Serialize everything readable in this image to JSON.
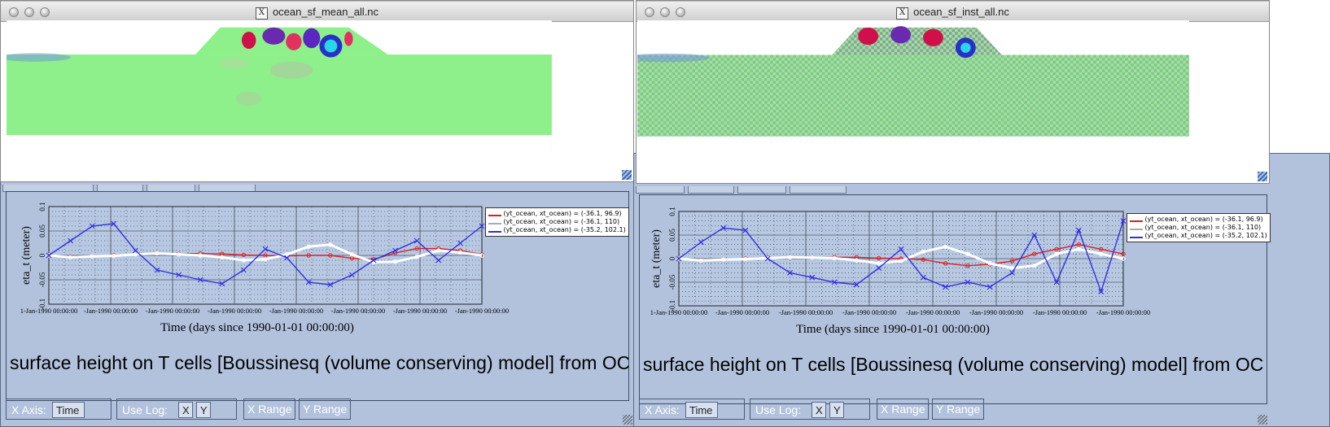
{
  "left_image_window": {
    "title": "ocean_sf_mean_all.nc"
  },
  "right_image_window": {
    "title": "ocean_sf_inst_all.nc"
  },
  "colors": {
    "panel_bg": "#b2c2dd",
    "plot_bg": "#b7c8e3",
    "red": "#d92020",
    "white": "#ffffff",
    "blue": "#3030e0"
  },
  "plots": [
    {
      "long_title": "surface height on T cells [Boussinesq (volume conserving) model] from OC",
      "legend": [
        "(yt_ocean, xt_ocean) = (-36.1, 96.9)",
        "(yt_ocean, xt_ocean) = (-36.1, 110)",
        "(yt_ocean, xt_ocean) = (-35.2, 102.1)"
      ],
      "xaxis_label": "X Axis:",
      "xaxis_value": "Time",
      "uselog_label": "Use Log:",
      "uselog_x": "X",
      "uselog_y": "Y",
      "xrange_label": "X Range",
      "yrange_label": "Y Range"
    },
    {
      "long_title": "surface height on T cells [Boussinesq (volume conserving) model] from OC",
      "legend": [
        "(yt_ocean, xt_ocean) = (-36.1, 96.9)",
        "(yt_ocean, xt_ocean) = (-36.1, 110)",
        "(yt_ocean, xt_ocean) = (-35.2, 102.1)"
      ],
      "xaxis_label": "X Axis:",
      "xaxis_value": "Time",
      "uselog_label": "Use Log:",
      "uselog_x": "X",
      "uselog_y": "Y",
      "xrange_label": "X Range",
      "yrange_label": "Y Range"
    }
  ],
  "chart_data": [
    {
      "type": "line",
      "xlabel": "Time (days since 1990-01-01 00:00:00)",
      "ylabel": "eta_t (meter)",
      "ylim": [
        -0.1,
        0.1
      ],
      "yticks": [
        "-0.1",
        "-0.05",
        "0",
        "0.05",
        "0.1"
      ],
      "xticks": [
        "1-Jan-1990 00:00:00",
        "-Jan-1990 00:00:00",
        "-Jan-1990 00:00:00",
        "-Jan-1990 00:00:00",
        "-Jan-1990 00:00:00",
        "-Jan-1990 00:00:00",
        "-Jan-1990 00:00:00",
        "-Jan-1990 00:00:00"
      ],
      "grid": true,
      "legend_position": "top-right",
      "x": [
        0,
        0.05,
        0.1,
        0.15,
        0.2,
        0.25,
        0.3,
        0.35,
        0.4,
        0.45,
        0.5,
        0.55,
        0.6,
        0.65,
        0.7,
        0.75,
        0.8,
        0.85,
        0.9,
        0.95,
        1
      ],
      "series": [
        {
          "name": "(yt_ocean, xt_ocean) = (-36.1, 96.9)",
          "color": "#d92020",
          "values": [
            0,
            -0.003,
            -0.002,
            0,
            0.002,
            0.003,
            0.003,
            0.004,
            0.003,
            0.001,
            0,
            -0.001,
            0,
            0,
            -0.006,
            -0.008,
            0.005,
            0.014,
            0.014,
            0.01,
            0.002
          ]
        },
        {
          "name": "(yt_ocean, xt_ocean) = (-36.1, 110)",
          "color": "#ffffff",
          "values": [
            0,
            -0.004,
            -0.002,
            -0.001,
            0.002,
            0.004,
            0.002,
            0,
            -0.004,
            -0.01,
            -0.008,
            0.002,
            0.018,
            0.022,
            0.002,
            -0.014,
            -0.013,
            -0.003,
            0.01,
            0.006,
            0
          ]
        },
        {
          "name": "(yt_ocean, xt_ocean) = (-35.2, 102.1)",
          "color": "#3030e0",
          "values": [
            0,
            0.03,
            0.06,
            0.065,
            0.01,
            -0.03,
            -0.04,
            -0.05,
            -0.058,
            -0.03,
            0.013,
            -0.005,
            -0.055,
            -0.06,
            -0.04,
            -0.01,
            0.01,
            0.03,
            -0.01,
            0.025,
            0.06
          ]
        }
      ]
    },
    {
      "type": "line",
      "xlabel": "Time (days since 1990-01-01 00:00:00)",
      "ylabel": "eta_t (meter)",
      "ylim": [
        -0.1,
        0.1
      ],
      "yticks": [
        "-0.1",
        "-0.05",
        "0",
        "0.05",
        "0.1"
      ],
      "xticks": [
        "1-Jan-1990 00:00:00",
        "-Jan-1990 00:00:00",
        "-Jan-1990 00:00:00",
        "-Jan-1990 00:00:00",
        "-Jan-1990 00:00:00",
        "-Jan-1990 00:00:00",
        "-Jan-1990 00:00:00",
        "-Jan-1990 00:00:00"
      ],
      "grid": true,
      "legend_position": "top-right",
      "x": [
        0,
        0.05,
        0.1,
        0.15,
        0.2,
        0.25,
        0.3,
        0.35,
        0.4,
        0.45,
        0.5,
        0.55,
        0.6,
        0.65,
        0.7,
        0.75,
        0.8,
        0.85,
        0.9,
        0.95,
        1
      ],
      "series": [
        {
          "name": "(yt_ocean, xt_ocean) = (-36.1, 96.9)",
          "color": "#d92020",
          "values": [
            0,
            -0.003,
            -0.002,
            0,
            0.002,
            0.003,
            0.002,
            0.003,
            0.003,
            0.001,
            0,
            -0.002,
            -0.01,
            -0.015,
            -0.012,
            -0.005,
            0.01,
            0.02,
            0.03,
            0.02,
            0.01
          ]
        },
        {
          "name": "(yt_ocean, xt_ocean) = (-36.1, 110)",
          "color": "#ffffff",
          "values": [
            0,
            -0.004,
            -0.002,
            -0.001,
            0.001,
            0.003,
            0.002,
            0.001,
            -0.004,
            -0.01,
            -0.005,
            0.015,
            0.025,
            0.01,
            -0.01,
            -0.02,
            -0.015,
            0.01,
            0.02,
            0.01,
            0
          ]
        },
        {
          "name": "(yt_ocean, xt_ocean) = (-35.2, 102.1)",
          "color": "#3030e0",
          "values": [
            0,
            0.035,
            0.065,
            0.06,
            0.0,
            -0.03,
            -0.04,
            -0.05,
            -0.055,
            -0.02,
            0.02,
            -0.04,
            -0.06,
            -0.05,
            -0.06,
            -0.03,
            0.05,
            -0.05,
            0.06,
            -0.07,
            0.08
          ]
        }
      ]
    }
  ]
}
